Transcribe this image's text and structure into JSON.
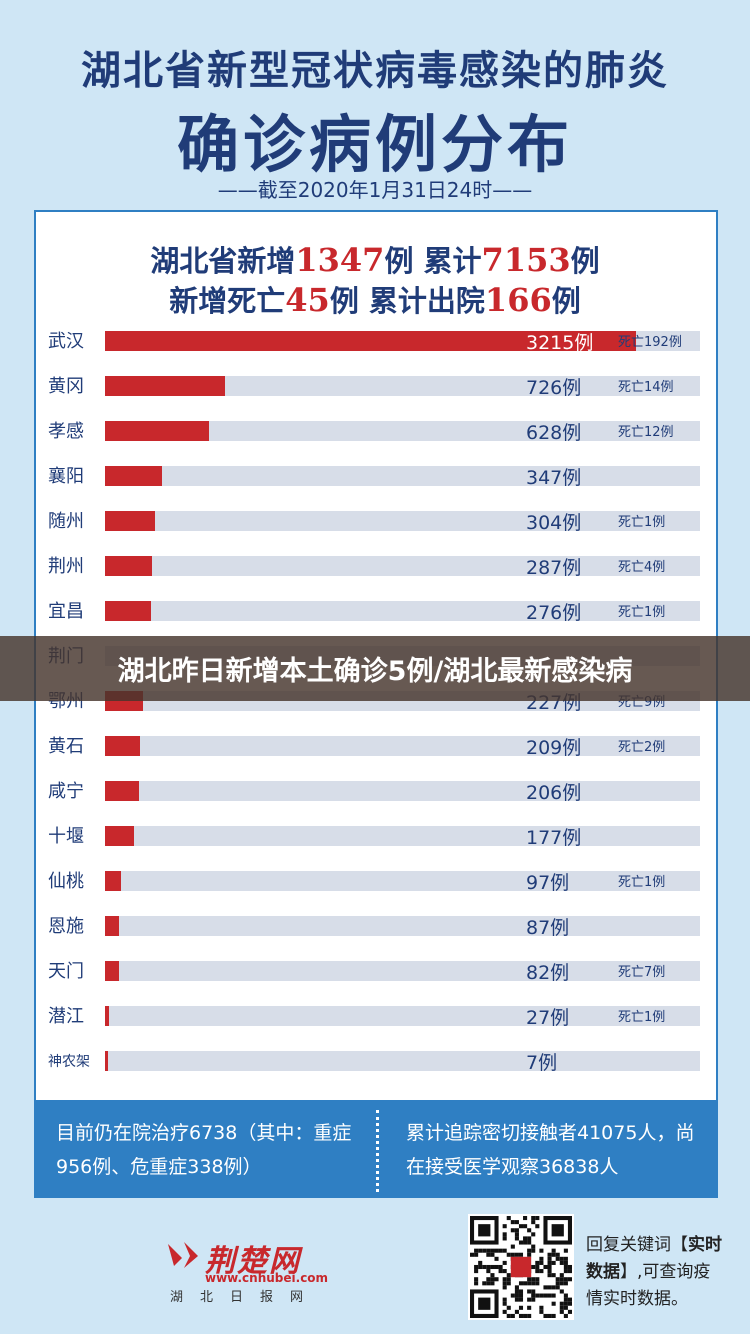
{
  "colors": {
    "bar": "#c8282c",
    "track": "#d7dde8",
    "title": "#203c78",
    "accent": "#2f7fc3"
  },
  "header": {
    "title_line1": "湖北省新型冠状病毒感染的肺炎",
    "title_line2": "确诊病例分布",
    "subtitle": "——截至2020年1月31日24时——"
  },
  "summary": {
    "l1_a": "湖北省新增",
    "l1_new": "1347",
    "l1_b": "例 累计",
    "l1_total": "7153",
    "l1_c": "例",
    "l2_a": "新增死亡",
    "l2_deaths": "45",
    "l2_b": "例 累计出院",
    "l2_discharged": "166",
    "l2_c": "例"
  },
  "chart_data": {
    "type": "bar",
    "title": "确诊病例分布",
    "categories": [
      "武汉",
      "黄冈",
      "孝感",
      "襄阳",
      "随州",
      "荆州",
      "宜昌",
      "荆门",
      "鄂州",
      "黄石",
      "咸宁",
      "十堰",
      "仙桃",
      "恩施",
      "天门",
      "潜江",
      "神农架"
    ],
    "values": [
      3215,
      726,
      628,
      347,
      304,
      287,
      276,
      null,
      227,
      209,
      206,
      177,
      97,
      87,
      82,
      27,
      7
    ],
    "value_labels": [
      "3215例",
      "726例",
      "628例",
      "347例",
      "304例",
      "287例",
      "276例",
      "",
      "227例",
      "209例",
      "206例",
      "177例",
      "97例",
      "87例",
      "82例",
      "27例",
      "7例"
    ],
    "deaths": [
      "死亡192例",
      "死亡14例",
      "死亡12例",
      "",
      "死亡1例",
      "死亡4例",
      "死亡1例",
      "",
      "死亡9例",
      "死亡2例",
      "",
      "",
      "死亡1例",
      "",
      "死亡7例",
      "死亡1例",
      ""
    ],
    "xlim": [
      0,
      3600
    ]
  },
  "banner": {
    "text": "湖北昨日新增本土确诊5例/湖北最新感染病"
  },
  "info": {
    "left": "目前仍在院治疗6738（其中：重症956例、危重症338例）",
    "right": "累计追踪密切接触者41075人，尚在接受医学观察36838人"
  },
  "footer": {
    "logo_name": "荆楚网",
    "logo_url": "www.cnhubei.com",
    "logo_sub": "湖北日报网",
    "qr_text_a": "回复关键词【",
    "qr_text_b": "实时数据",
    "qr_text_c": "】,可查询疫情实时数据。"
  }
}
